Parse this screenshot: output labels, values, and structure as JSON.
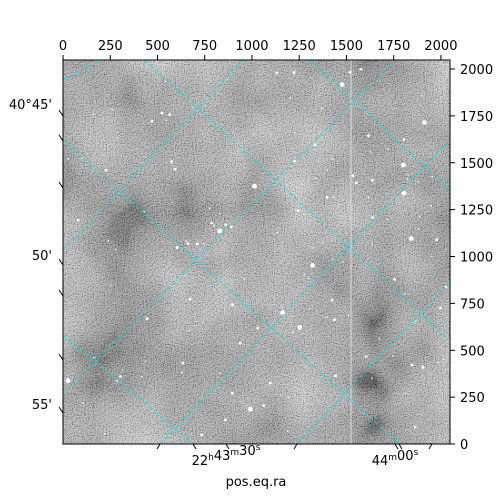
{
  "chart_data": {
    "type": "image",
    "xlabel": "pos.eq.ra",
    "pixel_axes": {
      "x_range": [
        0,
        2048
      ],
      "y_range": [
        0,
        2048
      ],
      "top_ticks": [
        0,
        250,
        500,
        750,
        1000,
        1250,
        1500,
        1750,
        2000
      ],
      "right_ticks": [
        0,
        250,
        500,
        750,
        1000,
        1250,
        1500,
        1750,
        2000
      ]
    },
    "world_axes": {
      "dec_ticks": [
        {
          "label": "40°45'"
        },
        {
          "label": "50'"
        },
        {
          "label": "55'"
        }
      ],
      "ra_ticks": [
        {
          "h": "22",
          "m": "43",
          "s": "30"
        },
        {
          "m": "44",
          "s": "00"
        }
      ]
    },
    "grid": true,
    "colors": {
      "grid": "#00e5ee",
      "frame": "#000000",
      "image_light": "#ffffff",
      "image_dark": "#3a3a3a"
    }
  }
}
